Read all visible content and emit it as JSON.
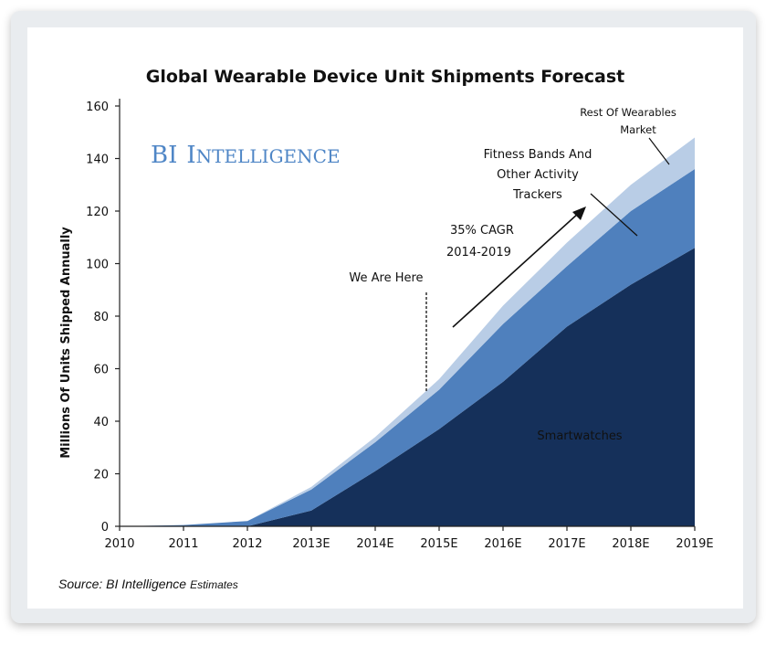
{
  "brand": {
    "initials": "BI",
    "first_letter": "I",
    "rest": "NTELLIGENCE"
  },
  "source": {
    "main": "Source: BI Intelligence",
    "suffix": "Estimates"
  },
  "annotations": {
    "we_are_here": "We Are Here",
    "cagr_line1": "35% CAGR",
    "cagr_line2": "2014-2019",
    "fitness_line1": "Fitness Bands And",
    "fitness_line2": "Other Activity",
    "fitness_line3": "Trackers",
    "rest_line1": "Rest Of Wearables",
    "rest_line2": "Market",
    "smartwatches": "Smartwatches"
  },
  "colors": {
    "smartwatches": "#15305a",
    "fitness": "#4f80bd",
    "rest": "#b9cde6",
    "brand": "#4f86c6"
  },
  "chart_data": {
    "type": "area",
    "stacked": true,
    "title": "Global Wearable Device Unit Shipments Forecast",
    "xlabel": "",
    "ylabel": "Millions Of Units Shipped Annually",
    "categories": [
      "2010",
      "2011",
      "2012",
      "2013E",
      "2014E",
      "2015E",
      "2016E",
      "2017E",
      "2018E",
      "2019E"
    ],
    "ylim": [
      0,
      160
    ],
    "yticks": [
      0,
      20,
      40,
      60,
      80,
      100,
      120,
      140,
      160
    ],
    "series": [
      {
        "name": "Smartwatches",
        "values": [
          0,
          0,
          0,
          6,
          21,
          37,
          55,
          76,
          92,
          106
        ]
      },
      {
        "name": "Fitness Bands And Other Activity Trackers",
        "values": [
          0,
          0.5,
          2,
          8,
          11,
          15,
          22,
          23,
          28,
          30
        ]
      },
      {
        "name": "Rest Of Wearables Market",
        "values": [
          0,
          0,
          0,
          1,
          2,
          4,
          7,
          9,
          10,
          12
        ]
      }
    ],
    "grid": false,
    "legend": "none",
    "marker": {
      "label": "We Are Here",
      "at": 4.8
    }
  }
}
